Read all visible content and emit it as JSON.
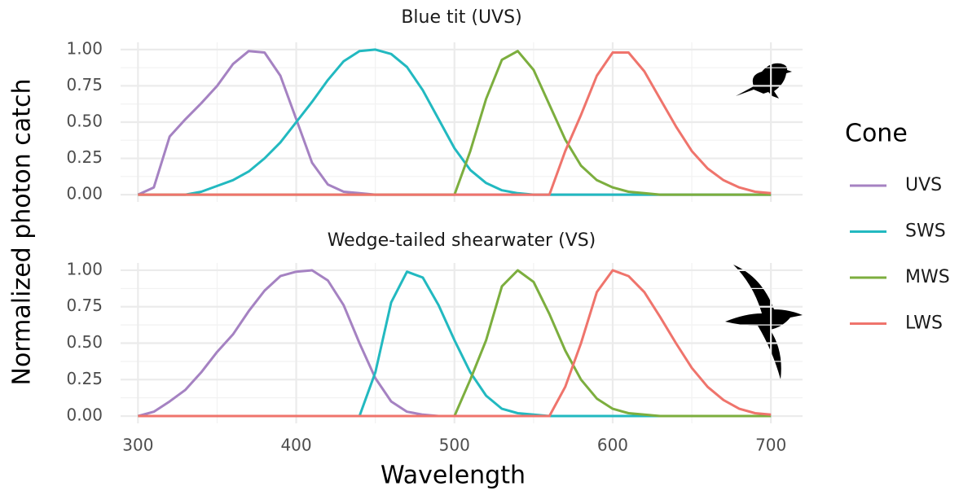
{
  "chart_data": [
    {
      "type": "line",
      "title": "Blue tit (UVS)",
      "ylabel": "Normalized photon catch",
      "legend_title": "Cone",
      "x": [
        300,
        310,
        320,
        330,
        340,
        350,
        360,
        370,
        380,
        390,
        400,
        410,
        420,
        430,
        440,
        450,
        460,
        470,
        480,
        490,
        500,
        510,
        520,
        530,
        540,
        550,
        560,
        570,
        580,
        590,
        600,
        610,
        620,
        630,
        640,
        650,
        660,
        670,
        680,
        690,
        700
      ],
      "xlim": [
        289,
        720
      ],
      "xticks": [
        300,
        400,
        500,
        600,
        700
      ],
      "xminor": [
        350,
        450,
        550,
        650
      ],
      "ylim": [
        -0.05,
        1.05
      ],
      "yticks": [
        0,
        0.25,
        {
          "value": 0.5,
          "label": "0.50"
        },
        0.75,
        {
          "value": 1,
          "label": "1.00"
        }
      ],
      "yticks_first_label": "0.00",
      "yminor": [
        0.125,
        0.375,
        0.625,
        0.875
      ],
      "grid": true,
      "series": [
        {
          "name": "UVS",
          "color": "#a582c2",
          "values": [
            0,
            0.05,
            0.4,
            0.52,
            0.63,
            0.75,
            0.9,
            0.99,
            0.98,
            0.82,
            0.52,
            0.22,
            0.07,
            0.02,
            0.01,
            0,
            0,
            0,
            0,
            0,
            0,
            0,
            0,
            0,
            0,
            0,
            0,
            0,
            0,
            0,
            0,
            0,
            0,
            0,
            0,
            0,
            0,
            0,
            0,
            0,
            0
          ]
        },
        {
          "name": "SWS",
          "color": "#22b9c0",
          "values": [
            0,
            0,
            0,
            0,
            0.02,
            0.06,
            0.1,
            0.16,
            0.25,
            0.36,
            0.5,
            0.64,
            0.79,
            0.92,
            0.99,
            1.0,
            0.97,
            0.88,
            0.72,
            0.52,
            0.32,
            0.17,
            0.08,
            0.03,
            0.01,
            0,
            0,
            0,
            0,
            0,
            0,
            0,
            0,
            0,
            0,
            0,
            0,
            0,
            0,
            0,
            0
          ]
        },
        {
          "name": "MWS",
          "color": "#7cae3e",
          "values": [
            0,
            0,
            0,
            0,
            0,
            0,
            0,
            0,
            0,
            0,
            0,
            0,
            0,
            0,
            0,
            0,
            0,
            0,
            0,
            0,
            0,
            0.3,
            0.66,
            0.93,
            0.99,
            0.86,
            0.62,
            0.38,
            0.2,
            0.1,
            0.05,
            0.02,
            0.01,
            0,
            0,
            0,
            0,
            0,
            0,
            0,
            0
          ]
        },
        {
          "name": "LWS",
          "color": "#ef746c",
          "values": [
            0,
            0,
            0,
            0,
            0,
            0,
            0,
            0,
            0,
            0,
            0,
            0,
            0,
            0,
            0,
            0,
            0,
            0,
            0,
            0,
            0,
            0,
            0,
            0,
            0,
            0,
            0,
            0.3,
            0.55,
            0.82,
            0.98,
            0.98,
            0.85,
            0.66,
            0.47,
            0.3,
            0.18,
            0.1,
            0.05,
            0.02,
            0.01
          ]
        }
      ]
    },
    {
      "type": "line",
      "title": "Wedge-tailed shearwater (VS)",
      "xlabel": "Wavelength",
      "x": [
        300,
        310,
        320,
        330,
        340,
        350,
        360,
        370,
        380,
        390,
        400,
        410,
        420,
        430,
        440,
        450,
        460,
        470,
        480,
        490,
        500,
        510,
        520,
        530,
        540,
        550,
        560,
        570,
        580,
        590,
        600,
        610,
        620,
        630,
        640,
        650,
        660,
        670,
        680,
        690,
        700
      ],
      "xlim": [
        289,
        720
      ],
      "xticks": [
        300,
        400,
        500,
        600,
        700
      ],
      "xminor": [
        350,
        450,
        550,
        650
      ],
      "ylim": [
        -0.05,
        1.05
      ],
      "yticks": [
        {
          "value": 0,
          "label": "0.00"
        },
        0.25,
        {
          "value": 0.5,
          "label": "0.50"
        },
        0.75,
        {
          "value": 1,
          "label": "1.00"
        }
      ],
      "yminor": [
        0.125,
        0.375,
        0.625,
        0.875
      ],
      "grid": true,
      "series": [
        {
          "name": "UVS",
          "color": "#a582c2",
          "values": [
            0,
            0.03,
            0.1,
            0.18,
            0.3,
            0.44,
            0.56,
            0.72,
            0.86,
            0.96,
            0.99,
            1.0,
            0.93,
            0.76,
            0.5,
            0.26,
            0.1,
            0.03,
            0.01,
            0,
            0,
            0,
            0,
            0,
            0,
            0,
            0,
            0,
            0,
            0,
            0,
            0,
            0,
            0,
            0,
            0,
            0,
            0,
            0,
            0,
            0
          ]
        },
        {
          "name": "SWS",
          "color": "#22b9c0",
          "values": [
            0,
            0,
            0,
            0,
            0,
            0,
            0,
            0,
            0,
            0,
            0,
            0,
            0,
            0,
            0,
            0.3,
            0.78,
            0.99,
            0.95,
            0.76,
            0.52,
            0.3,
            0.14,
            0.05,
            0.02,
            0.01,
            0,
            0,
            0,
            0,
            0,
            0,
            0,
            0,
            0,
            0,
            0,
            0,
            0,
            0,
            0
          ]
        },
        {
          "name": "MWS",
          "color": "#7cae3e",
          "values": [
            0,
            0,
            0,
            0,
            0,
            0,
            0,
            0,
            0,
            0,
            0,
            0.0,
            0,
            0,
            0,
            0,
            0,
            0,
            0,
            0,
            0,
            0.25,
            0.52,
            0.89,
            1.0,
            0.92,
            0.7,
            0.45,
            0.25,
            0.12,
            0.05,
            0.02,
            0.01,
            0,
            0,
            0,
            0,
            0,
            0,
            0,
            0
          ]
        },
        {
          "name": "LWS",
          "color": "#ef746c",
          "values": [
            0,
            0,
            0,
            0,
            0,
            0,
            0,
            0,
            0,
            0,
            0,
            0,
            0,
            0,
            0,
            0,
            0,
            0,
            0,
            0,
            0,
            0,
            0,
            0,
            0,
            0,
            0,
            0.2,
            0.5,
            0.85,
            1.0,
            0.96,
            0.85,
            0.68,
            0.5,
            0.33,
            0.2,
            0.11,
            0.05,
            0.02,
            0.01
          ]
        }
      ]
    }
  ]
}
